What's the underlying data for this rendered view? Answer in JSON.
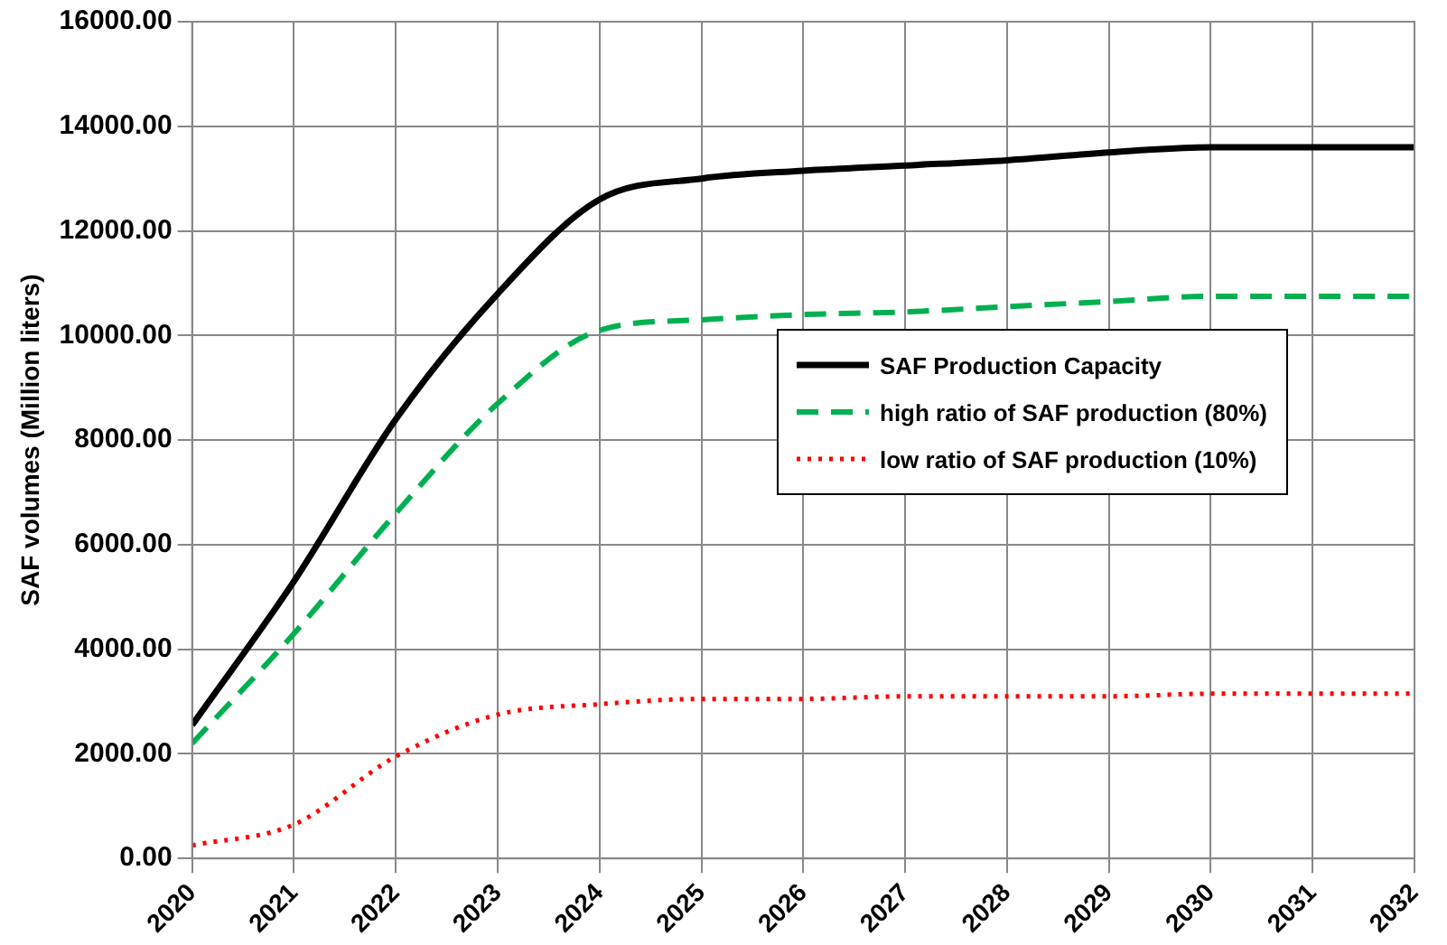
{
  "chart_data": {
    "type": "line",
    "ylabel": "SAF volumes (Million liters)",
    "x": [
      2020,
      2021,
      2022,
      2023,
      2024,
      2025,
      2026,
      2027,
      2028,
      2029,
      2030,
      2031,
      2032
    ],
    "xlim": [
      2020,
      2032
    ],
    "xticks": [
      2020,
      2021,
      2022,
      2023,
      2024,
      2025,
      2026,
      2027,
      2028,
      2029,
      2030,
      2031,
      2032
    ],
    "ylim": [
      0,
      16000
    ],
    "yticks": [
      {
        "value": 0,
        "label": "0.00"
      },
      {
        "value": 2000,
        "label": "2000.00"
      },
      {
        "value": 4000,
        "label": "4000.00"
      },
      {
        "value": 6000,
        "label": "6000.00"
      },
      {
        "value": 8000,
        "label": "8000.00"
      },
      {
        "value": 10000,
        "label": "10000.00"
      },
      {
        "value": 12000,
        "label": "12000.00"
      },
      {
        "value": 14000,
        "label": "14000.00"
      },
      {
        "value": 16000,
        "label": "16000.00"
      }
    ],
    "grid": true,
    "legend": "right",
    "marker": "none",
    "series": [
      {
        "name": "SAF Production Capacity",
        "color": "#000000",
        "line_style": "solid",
        "values": [
          2550,
          5300,
          8400,
          10800,
          12600,
          13000,
          13150,
          13250,
          13350,
          13500,
          13600,
          13600,
          13600
        ]
      },
      {
        "name": "high ratio of SAF production (80%)",
        "color": "#00b050",
        "line_style": "dashed",
        "values": [
          2200,
          4300,
          6600,
          8700,
          10100,
          10300,
          10400,
          10450,
          10550,
          10650,
          10750,
          10750,
          10750
        ]
      },
      {
        "name": "low ratio of SAF production (10%)",
        "color": "#ff0000",
        "line_style": "dotted",
        "values": [
          250,
          650,
          1950,
          2750,
          2950,
          3050,
          3050,
          3100,
          3100,
          3100,
          3150,
          3150,
          3150
        ]
      }
    ]
  }
}
